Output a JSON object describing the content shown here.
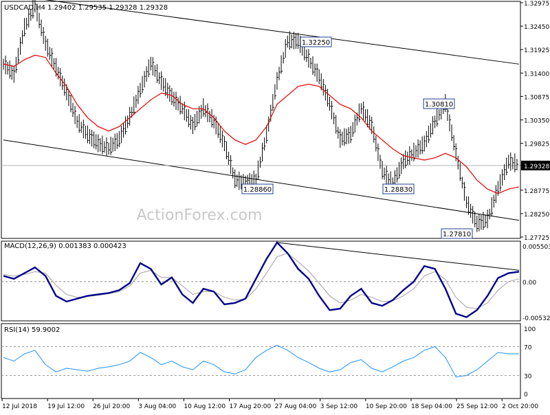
{
  "window": {
    "header_text": "USDCAD,H4  1.29402 1.29535 1.29328 1.29328",
    "watermark": "ActionForex.com"
  },
  "price_panel": {
    "axis_ticks": [
      "1.32975",
      "1.32450",
      "1.31925",
      "1.31400",
      "1.30875",
      "1.30350",
      "1.29825",
      "1.29328",
      "1.28775",
      "1.28250",
      "1.27725"
    ],
    "current_price": "1.29328",
    "annotations": [
      {
        "label": "1.32250",
        "value": 1.3225
      },
      {
        "label": "1.30810",
        "value": 1.3081
      },
      {
        "label": "1.28860",
        "value": 1.2886
      },
      {
        "label": "1.28830",
        "value": 1.2883
      },
      {
        "label": "1.27810",
        "value": 1.2781
      }
    ]
  },
  "macd_panel": {
    "title": "MACD(12,26,9) 0.001383 0.000423",
    "axis_ticks": [
      "0.005503",
      "0.00",
      "-0.005326"
    ]
  },
  "rsi_panel": {
    "title": "RSI(14) 59.9002",
    "axis_ticks": [
      "100",
      "70",
      "30",
      "0"
    ]
  },
  "time_axis": [
    "12 Jul 2018",
    "19 Jul 12:00",
    "26 Jul 20:00",
    "3 Aug 04:00",
    "10 Aug 12:00",
    "17 Aug 20:00",
    "27 Aug 04:00",
    "3 Sep 12:00",
    "10 Sep 20:00",
    "18 Sep 04:00",
    "25 Sep 12:00",
    "2 Oct 20:00"
  ],
  "colors": {
    "price_bars": "#000000",
    "moving_average": "#e00000",
    "macd_line": "#00008b",
    "macd_signal": "#a0a0a0",
    "rsi_line": "#1e90ff",
    "channel": "#000000",
    "watermark": "#c8c8c8"
  },
  "chart_data": [
    {
      "type": "line",
      "name": "price",
      "time_labels": [
        "12 Jul 2018",
        "19 Jul 12:00",
        "26 Jul 20:00",
        "3 Aug 04:00",
        "10 Aug 12:00",
        "17 Aug 20:00",
        "27 Aug 04:00",
        "3 Sep 12:00",
        "10 Sep 20:00",
        "18 Sep 04:00",
        "25 Sep 12:00",
        "2 Oct 20:00"
      ],
      "close_path": [
        1.316,
        1.3135,
        1.324,
        1.329,
        1.3205,
        1.315,
        1.3095,
        1.303,
        1.3,
        1.298,
        1.297,
        1.299,
        1.304,
        1.31,
        1.316,
        1.312,
        1.3085,
        1.306,
        1.302,
        1.306,
        1.303,
        1.298,
        1.29,
        1.289,
        1.29,
        1.3,
        1.312,
        1.321,
        1.321,
        1.317,
        1.313,
        1.307,
        1.299,
        1.3,
        1.306,
        1.302,
        1.292,
        1.289,
        1.294,
        1.296,
        1.298,
        1.303,
        1.307,
        1.296,
        1.285,
        1.28,
        1.281,
        1.288,
        1.294,
        1.2933
      ],
      "moving_average": [
        1.316,
        1.3155,
        1.317,
        1.318,
        1.3175,
        1.314,
        1.311,
        1.307,
        1.304,
        1.302,
        1.301,
        1.302,
        1.304,
        1.306,
        1.308,
        1.3095,
        1.309,
        1.307,
        1.306,
        1.306,
        1.304,
        1.301,
        1.299,
        1.298,
        1.299,
        1.302,
        1.307,
        1.309,
        1.311,
        1.3115,
        1.311,
        1.309,
        1.307,
        1.306,
        1.304,
        1.301,
        1.299,
        1.297,
        1.2955,
        1.295,
        1.2945,
        1.295,
        1.296,
        1.295,
        1.293,
        1.29,
        1.288,
        1.287,
        1.288,
        1.2885
      ],
      "channel_upper": [
        [
          0,
          1.3317
        ],
        [
          49,
          1.316
        ]
      ],
      "channel_lower": [
        [
          0,
          1.299
        ],
        [
          49,
          1.281
        ]
      ],
      "ylim": [
        1.27725,
        1.32975
      ]
    },
    {
      "type": "line",
      "name": "MACD(12,26,9)",
      "macd": [
        0.0008,
        0.0004,
        0.0012,
        0.002,
        0.0008,
        -0.002,
        -0.0028,
        -0.0024,
        -0.002,
        -0.0018,
        -0.0016,
        -0.0012,
        -0.0002,
        0.0026,
        0.0018,
        -0.0004,
        0.0006,
        -0.0018,
        -0.003,
        -0.001,
        -0.0014,
        -0.0032,
        -0.003,
        -0.0024,
        0.0004,
        0.0032,
        0.0055,
        0.004,
        0.0018,
        0.0004,
        -0.002,
        -0.004,
        -0.0038,
        -0.002,
        -0.001,
        -0.003,
        -0.0034,
        -0.0026,
        -0.0012,
        0.0,
        0.0022,
        0.0018,
        -0.001,
        -0.0045,
        -0.005,
        -0.004,
        -0.002,
        0.0005,
        0.0012,
        0.0014
      ],
      "signal": [
        0.001,
        0.0008,
        0.001,
        0.0014,
        0.0012,
        -0.0005,
        -0.0018,
        -0.0022,
        -0.0021,
        -0.0019,
        -0.0017,
        -0.0014,
        -0.0006,
        0.0012,
        0.0016,
        0.0006,
        0.0006,
        -0.0006,
        -0.0018,
        -0.0014,
        -0.0014,
        -0.0022,
        -0.0026,
        -0.0025,
        -0.001,
        0.0012,
        0.0035,
        0.004,
        0.0028,
        0.0015,
        -0.0002,
        -0.002,
        -0.003,
        -0.0026,
        -0.0018,
        -0.0022,
        -0.0028,
        -0.0027,
        -0.002,
        -0.001,
        0.0008,
        0.0014,
        0.0003,
        -0.0022,
        -0.0036,
        -0.0038,
        -0.003,
        -0.0012,
        0.0,
        0.0004
      ],
      "trendline": [
        [
          26,
          0.0055
        ],
        [
          49,
          0.0016
        ]
      ],
      "ylim": [
        -0.005326,
        0.005503
      ]
    },
    {
      "type": "line",
      "name": "RSI(14)",
      "values": [
        55,
        50,
        60,
        65,
        45,
        35,
        40,
        38,
        36,
        40,
        42,
        45,
        50,
        62,
        55,
        45,
        50,
        42,
        38,
        50,
        45,
        35,
        32,
        38,
        55,
        65,
        72,
        65,
        55,
        48,
        40,
        35,
        38,
        48,
        52,
        40,
        35,
        42,
        50,
        55,
        65,
        70,
        55,
        28,
        30,
        38,
        50,
        62,
        60,
        60
      ],
      "levels": [
        70,
        30
      ],
      "ylim": [
        0,
        100
      ]
    }
  ]
}
